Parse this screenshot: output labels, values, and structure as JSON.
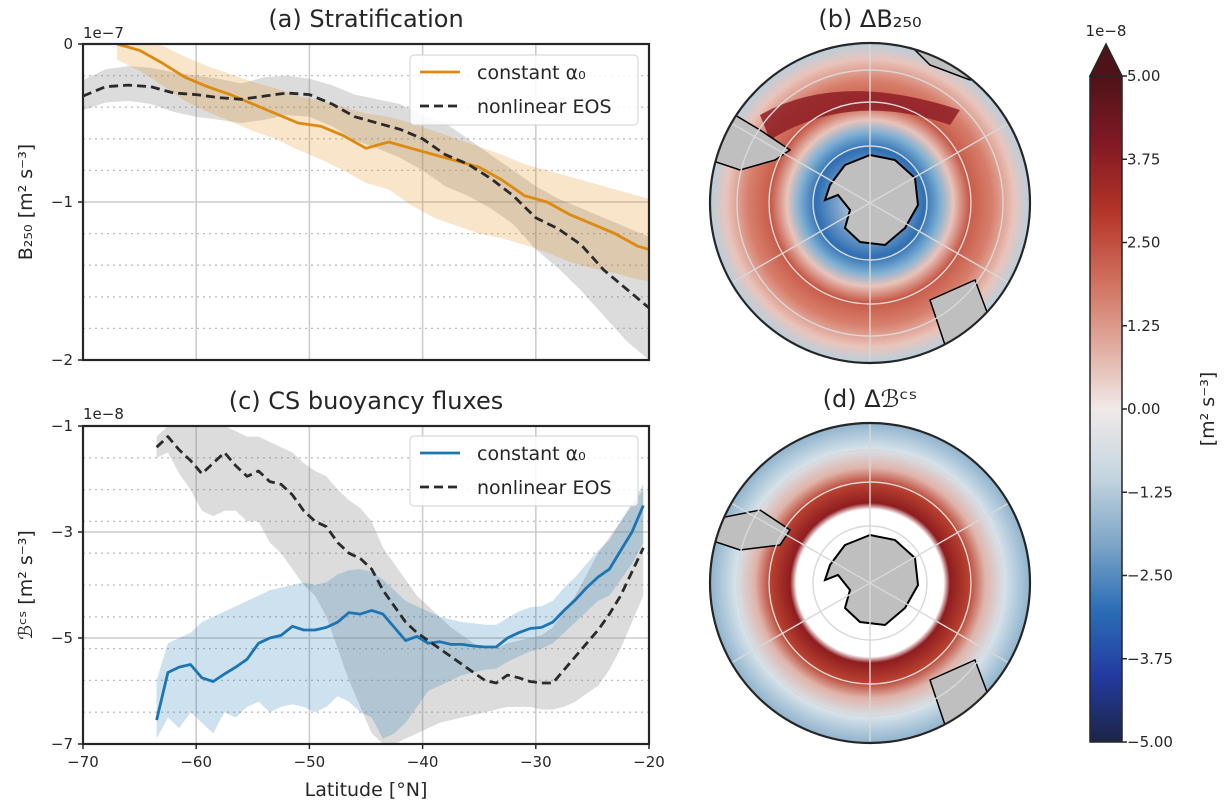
{
  "chart_data": [
    {
      "panel": "a",
      "type": "line",
      "title": "(a) Stratification",
      "offset_text": "1e−7",
      "ylabel": "B₂₅₀ [m² s⁻³]",
      "ylim": [
        -2,
        0
      ],
      "yticks": [
        "0",
        "−1",
        "−2"
      ],
      "xlim": [
        -70,
        -20
      ],
      "xticks": [
        -70,
        -60,
        -50,
        -40,
        -30,
        -20
      ],
      "grid": true,
      "legend_position": "upper right",
      "series": [
        {
          "name": "constant α₀",
          "color": "#dd8a0f",
          "style": "solid",
          "x": [
            -67,
            -65,
            -63,
            -61,
            -59,
            -57,
            -55,
            -53,
            -51,
            -49,
            -47,
            -45,
            -43,
            -41,
            -39,
            -37,
            -35,
            -33,
            -31,
            -29,
            -27,
            -25,
            -23,
            -21,
            -20
          ],
          "y": [
            0.0,
            -0.04,
            -0.12,
            -0.21,
            -0.27,
            -0.32,
            -0.38,
            -0.44,
            -0.5,
            -0.52,
            -0.58,
            -0.66,
            -0.62,
            -0.66,
            -0.7,
            -0.74,
            -0.78,
            -0.86,
            -0.96,
            -1.0,
            -1.08,
            -1.14,
            -1.2,
            -1.28,
            -1.3
          ],
          "band_upper": [
            0.0,
            0.0,
            -0.01,
            -0.08,
            -0.14,
            -0.19,
            -0.24,
            -0.28,
            -0.33,
            -0.36,
            -0.4,
            -0.44,
            -0.46,
            -0.5,
            -0.55,
            -0.6,
            -0.65,
            -0.7,
            -0.76,
            -0.8,
            -0.84,
            -0.88,
            -0.92,
            -0.96,
            -0.98
          ],
          "band_lower": [
            -0.1,
            -0.17,
            -0.26,
            -0.36,
            -0.43,
            -0.49,
            -0.55,
            -0.6,
            -0.67,
            -0.73,
            -0.8,
            -0.88,
            -0.92,
            -1.02,
            -1.1,
            -1.15,
            -1.2,
            -1.23,
            -1.27,
            -1.32,
            -1.38,
            -1.42,
            -1.45,
            -1.49,
            -1.5
          ]
        },
        {
          "name": "nonlinear EOS",
          "color": "#2a2a2a",
          "style": "dashed",
          "x": [
            -70,
            -68,
            -66,
            -64,
            -62,
            -60,
            -58,
            -56,
            -54,
            -52,
            -50,
            -48,
            -46,
            -44,
            -42,
            -40,
            -38,
            -36,
            -34,
            -32,
            -30,
            -28,
            -26,
            -24,
            -22,
            -20
          ],
          "y": [
            -0.33,
            -0.27,
            -0.26,
            -0.27,
            -0.31,
            -0.32,
            -0.34,
            -0.35,
            -0.33,
            -0.31,
            -0.32,
            -0.38,
            -0.46,
            -0.5,
            -0.54,
            -0.6,
            -0.7,
            -0.76,
            -0.85,
            -0.96,
            -1.1,
            -1.17,
            -1.27,
            -1.43,
            -1.55,
            -1.67
          ],
          "band_upper": [
            -0.23,
            -0.16,
            -0.14,
            -0.15,
            -0.18,
            -0.2,
            -0.22,
            -0.25,
            -0.21,
            -0.2,
            -0.22,
            -0.26,
            -0.32,
            -0.35,
            -0.38,
            -0.45,
            -0.5,
            -0.6,
            -0.7,
            -0.8,
            -0.9,
            -0.98,
            -1.04,
            -1.1,
            -1.16,
            -1.22
          ],
          "band_lower": [
            -0.42,
            -0.37,
            -0.36,
            -0.38,
            -0.43,
            -0.46,
            -0.48,
            -0.5,
            -0.48,
            -0.45,
            -0.46,
            -0.52,
            -0.61,
            -0.66,
            -0.72,
            -0.8,
            -0.9,
            -0.96,
            -1.04,
            -1.14,
            -1.3,
            -1.42,
            -1.56,
            -1.72,
            -1.88,
            -2.0
          ]
        }
      ]
    },
    {
      "panel": "c",
      "type": "line",
      "title": "(c) CS buoyancy fluxes",
      "offset_text": "1e−8",
      "ylabel": "ℬᶜˢ [m² s⁻³]",
      "xlabel": "Latitude [°N]",
      "ylim": [
        -7,
        -1
      ],
      "yticks": [
        "−1",
        "−3",
        "−5",
        "−7"
      ],
      "xlim": [
        -70,
        -20
      ],
      "xticks": [
        -70,
        -60,
        -50,
        -40,
        -30,
        -20
      ],
      "xtick_labels": [
        "−70",
        "−60",
        "−50",
        "−40",
        "−30",
        "−20"
      ],
      "grid": true,
      "legend_position": "upper right",
      "series": [
        {
          "name": "constant α₀",
          "color": "#1b75b3",
          "style": "solid",
          "x": [
            -63.5,
            -62.5,
            -61.5,
            -60.5,
            -59.5,
            -58.5,
            -57.5,
            -56.5,
            -55.5,
            -54.5,
            -53.5,
            -52.5,
            -51.5,
            -50.5,
            -49.5,
            -48.5,
            -47.5,
            -46.5,
            -45.5,
            -44.5,
            -43.5,
            -42.5,
            -41.5,
            -40.5,
            -39.5,
            -38.5,
            -37.5,
            -36.5,
            -35.5,
            -34.5,
            -33.5,
            -32.5,
            -31.5,
            -30.5,
            -29.5,
            -28.5,
            -27.5,
            -26.5,
            -25.5,
            -24.5,
            -23.5,
            -22.5,
            -21.5,
            -20.5
          ],
          "y": [
            -6.55,
            -5.65,
            -5.55,
            -5.5,
            -5.75,
            -5.82,
            -5.68,
            -5.55,
            -5.4,
            -5.1,
            -5.0,
            -4.95,
            -4.78,
            -4.85,
            -4.85,
            -4.8,
            -4.7,
            -4.52,
            -4.55,
            -4.48,
            -4.55,
            -4.8,
            -5.05,
            -4.97,
            -5.1,
            -5.07,
            -5.12,
            -5.12,
            -5.15,
            -5.17,
            -5.17,
            -5.0,
            -4.9,
            -4.82,
            -4.8,
            -4.7,
            -4.48,
            -4.28,
            -4.05,
            -3.85,
            -3.7,
            -3.35,
            -3.0,
            -2.5
          ],
          "band_upper": [
            -5.8,
            -5.1,
            -5.0,
            -4.9,
            -4.7,
            -4.6,
            -4.5,
            -4.4,
            -4.3,
            -4.2,
            -4.1,
            -4.05,
            -4.0,
            -3.95,
            -4.0,
            -3.95,
            -3.8,
            -3.72,
            -3.7,
            -3.75,
            -3.9,
            -4.1,
            -4.3,
            -4.4,
            -4.5,
            -4.6,
            -4.65,
            -4.7,
            -4.72,
            -4.75,
            -4.75,
            -4.62,
            -4.5,
            -4.42,
            -4.4,
            -4.3,
            -4.05,
            -3.85,
            -3.6,
            -3.35,
            -3.15,
            -2.8,
            -2.45,
            -2.1
          ],
          "band_lower": [
            -6.9,
            -6.5,
            -6.7,
            -6.4,
            -6.6,
            -6.8,
            -6.4,
            -6.5,
            -6.3,
            -6.2,
            -6.4,
            -6.3,
            -6.25,
            -6.3,
            -6.4,
            -6.3,
            -6.1,
            -6.2,
            -6.4,
            -6.5,
            -6.9,
            -6.8,
            -6.6,
            -6.3,
            -6.0,
            -5.9,
            -5.8,
            -5.7,
            -5.65,
            -5.6,
            -5.58,
            -5.45,
            -5.35,
            -5.25,
            -5.2,
            -5.1,
            -4.9,
            -4.7,
            -4.5,
            -4.3,
            -4.2,
            -3.9,
            -3.6,
            -3.2
          ]
        },
        {
          "name": "nonlinear EOS",
          "color": "#2a2a2a",
          "style": "dashed",
          "x": [
            -63.5,
            -62.5,
            -61.5,
            -60.5,
            -59.5,
            -58.5,
            -57.5,
            -56.5,
            -55.5,
            -54.5,
            -53.5,
            -52.5,
            -51.5,
            -50.5,
            -49.5,
            -48.5,
            -47.5,
            -46.5,
            -45.5,
            -44.5,
            -43.5,
            -42.5,
            -41.5,
            -40.5,
            -39.5,
            -38.5,
            -37.5,
            -36.5,
            -35.5,
            -34.5,
            -33.5,
            -32.5,
            -31.5,
            -30.5,
            -29.5,
            -28.5,
            -27.5,
            -26.5,
            -25.5,
            -24.5,
            -23.5,
            -22.5,
            -21.5,
            -20.5
          ],
          "y": [
            -1.4,
            -1.2,
            -1.45,
            -1.65,
            -1.9,
            -1.7,
            -1.5,
            -1.75,
            -1.95,
            -1.85,
            -2.05,
            -2.1,
            -2.3,
            -2.6,
            -2.8,
            -2.9,
            -3.2,
            -3.4,
            -3.5,
            -3.7,
            -4.1,
            -4.4,
            -4.7,
            -4.9,
            -5.05,
            -5.2,
            -5.35,
            -5.5,
            -5.65,
            -5.8,
            -5.85,
            -5.7,
            -5.75,
            -5.82,
            -5.85,
            -5.85,
            -5.6,
            -5.35,
            -5.1,
            -4.85,
            -4.55,
            -4.2,
            -3.75,
            -3.3
          ],
          "band_upper": [
            -1.2,
            -1.0,
            -1.0,
            -1.0,
            -1.0,
            -1.0,
            -1.0,
            -1.1,
            -1.2,
            -1.2,
            -1.3,
            -1.4,
            -1.5,
            -1.7,
            -1.85,
            -1.95,
            -2.2,
            -2.4,
            -2.55,
            -2.8,
            -3.3,
            -3.6,
            -3.9,
            -4.2,
            -4.4,
            -4.6,
            -4.8,
            -4.95,
            -5.1,
            -5.2,
            -5.2,
            -5.1,
            -5.05,
            -5.0,
            -4.95,
            -4.8,
            -4.5,
            -4.2,
            -3.8,
            -3.4,
            -3.1,
            -2.8,
            -2.5,
            -2.2
          ],
          "band_lower": [
            -1.6,
            -1.5,
            -1.9,
            -2.2,
            -2.6,
            -2.7,
            -2.6,
            -2.6,
            -2.8,
            -2.8,
            -3.2,
            -3.4,
            -3.7,
            -4.0,
            -4.2,
            -4.6,
            -5.2,
            -5.8,
            -6.3,
            -6.8,
            -7.0,
            -7.0,
            -6.9,
            -6.8,
            -6.7,
            -6.6,
            -6.55,
            -6.5,
            -6.45,
            -6.4,
            -6.35,
            -6.3,
            -6.3,
            -6.3,
            -6.35,
            -6.35,
            -6.3,
            -6.2,
            -6.05,
            -5.9,
            -5.6,
            -5.2,
            -4.7,
            -4.2
          ]
        }
      ]
    },
    {
      "panel": "b",
      "type": "heatmap",
      "title": "(b) ΔB₂₅₀",
      "projection": "south polar stereographic",
      "pattern": "negative (blue) near Antarctic coast, positive (red) in the Antarctic Circumpolar Current belt, fading toward the rim"
    },
    {
      "panel": "d",
      "type": "heatmap",
      "title": "(d) Δℬᶜˢ",
      "projection": "south polar stereographic",
      "pattern": "masked (white) near the Antarctic coast, strong positive (red) ring around it, weak negative (blue) toward the rim"
    },
    {
      "panel": "colorbar",
      "type": "colorbar",
      "offset_text": "1e−8",
      "label": "[m² s⁻³]",
      "range": [
        -5.0,
        5.0
      ],
      "ticks": [
        "5.00",
        "3.75",
        "2.50",
        "1.25",
        "0.00",
        "−1.25",
        "−2.50",
        "−3.75",
        "−5.00"
      ],
      "extend": "max",
      "colormap_stops": [
        "#1c2547",
        "#233ba1",
        "#2c6fb7",
        "#7fa7c8",
        "#c5d6e0",
        "#f1e9e8",
        "#dfa89a",
        "#cf6b59",
        "#b23327",
        "#811924",
        "#4d1318"
      ]
    }
  ],
  "colors": {
    "land": "#bfbfbf",
    "grid": "#cccccc",
    "spine": "#262626"
  }
}
